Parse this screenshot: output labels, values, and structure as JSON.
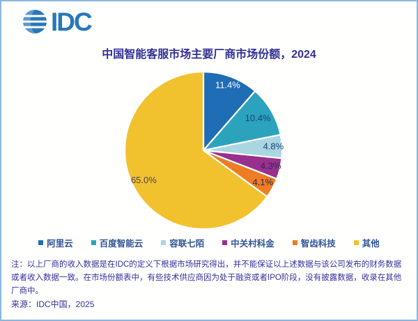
{
  "logo": {
    "text": "IDC"
  },
  "title": "中国智能客服市场主要厂商市场份额，2024",
  "chart_data": {
    "type": "pie",
    "title": "中国智能客服市场主要厂商市场份额，2024",
    "unit": "%",
    "start_angle_deg": 0,
    "direction": "clockwise",
    "legend_position": "bottom",
    "slices": [
      {
        "label": "阿里云",
        "value": 11.4,
        "display": "11.4%",
        "color": "#1e6db5",
        "label_color": "#ffffff",
        "label_r": 0.88
      },
      {
        "label": "百度智能云",
        "value": 10.4,
        "display": "10.4%",
        "color": "#2ba3bd",
        "label_color": "#1f3f7c",
        "label_r": 0.8
      },
      {
        "label": "容联七陌",
        "value": 4.8,
        "display": "4.8%",
        "color": "#a9d6e0",
        "label_color": "#1f3f7c",
        "label_r": 0.89
      },
      {
        "label": "中关村科金",
        "value": 4.3,
        "display": "4.3%",
        "color": "#98308f",
        "label_color": "#2e2a4d",
        "label_r": 0.88
      },
      {
        "label": "智齿科技",
        "value": 4.1,
        "display": "4.1%",
        "color": "#ee7c23",
        "label_color": "#2e2a4d",
        "label_r": 0.86
      },
      {
        "label": "其他",
        "value": 65.0,
        "display": "65.0%",
        "color": "#f2c12e",
        "label_color": "#4a4653",
        "label_r": 0.85
      }
    ]
  },
  "note": "注：以上厂商的收入数据是在IDC的定义下根据市场研究得出，并不能保证以上述数据与该公司发布的财务数据或者收入数据一致。在市场份额表中，有些技术供应商因为处于融资或者IPO阶段，没有披露数据，收录在其他厂商中。",
  "source": "来源：IDC中国，2025",
  "colors": {
    "title_text": "#312f96",
    "note_text": "#34319e",
    "legend_text": "#2f5496",
    "page_border": "#8ab6dc",
    "logo_blue": "#2878b8"
  }
}
